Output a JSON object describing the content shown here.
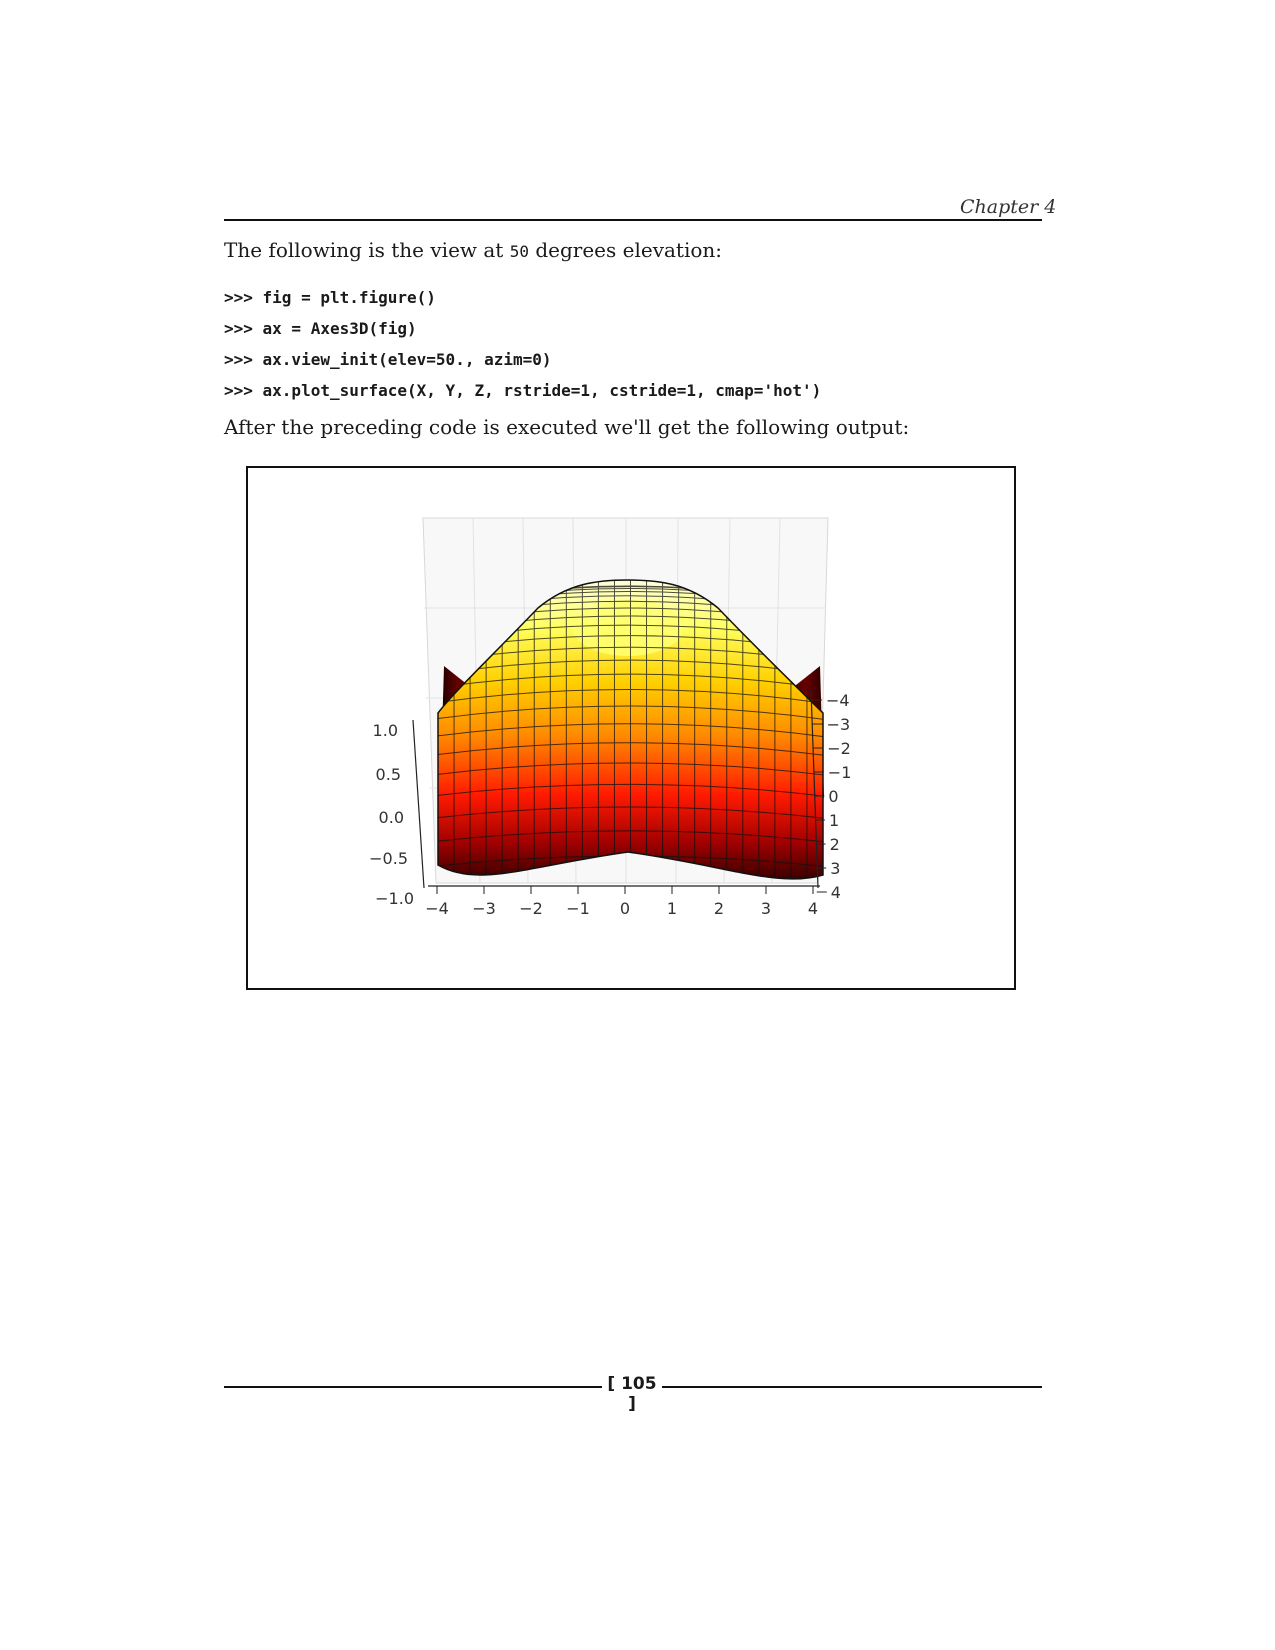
{
  "header": {
    "chapter_label": "Chapter 4"
  },
  "paragraphs": {
    "intro_before": "The following is the view at ",
    "intro_code": "50",
    "intro_after": " degrees elevation:",
    "after_code": "After the preceding code is executed we'll get the following output:"
  },
  "code_lines": [
    ">>> fig = plt.figure()",
    ">>> ax = Axes3D(fig)",
    ">>> ax.view_init(elev=50., azim=0)",
    ">>> ax.plot_surface(X, Y, Z, rstride=1, cstride=1, cmap='hot')"
  ],
  "figure": {
    "x_ticks": [
      "−4",
      "−3",
      "−2",
      "−1",
      "0",
      "1",
      "2",
      "3",
      "4"
    ],
    "y_ticks": [
      "−4",
      "−3",
      "−2",
      "−1",
      "0",
      "1",
      "2",
      "3",
      "4"
    ],
    "z_ticks": [
      "1.0",
      "0.5",
      "0.0",
      "−0.5",
      "−1.0"
    ],
    "colormap": "hot",
    "elevation": 50,
    "azimuth": 0
  },
  "footer": {
    "page_number": "[ 105 ]"
  }
}
